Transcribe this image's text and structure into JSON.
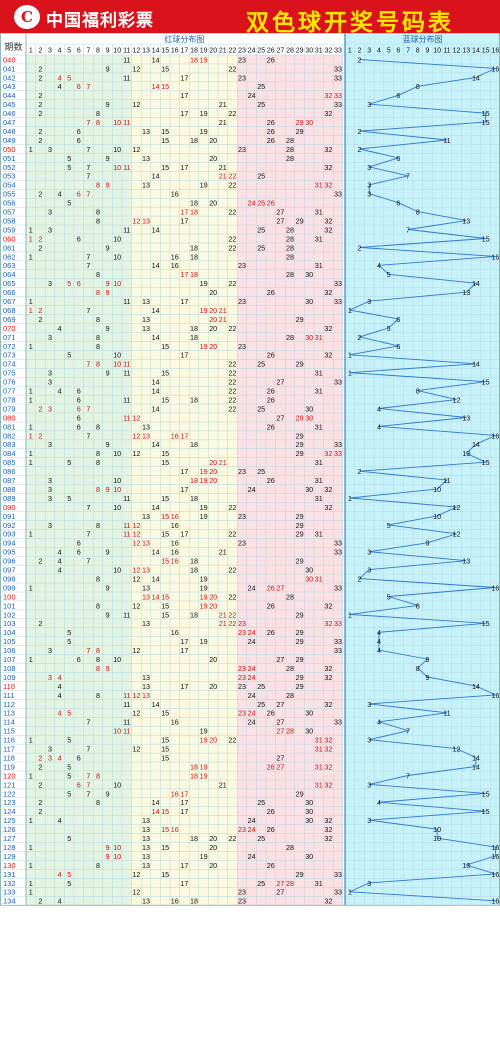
{
  "header": {
    "logo_text": "中国福利彩票",
    "title": "双色球开奖号码表"
  },
  "colors": {
    "header_bg": "#d9121b",
    "title": "#ffe600",
    "zone1": "#e3f4e3",
    "zone2": "#fbfae0",
    "zone3": "#fbe0e4",
    "blue_zone": "#c8f2fa",
    "red_num": "#d01010",
    "grid": "#b3d8e0",
    "period_red": "#e01010",
    "line": "#2c78d0"
  },
  "chart_data": {
    "type": "table",
    "column_label_period": "期数",
    "red_title": "红球分布图",
    "blue_title": "蓝球分布图",
    "red_cols": [
      "1",
      "2",
      "3",
      "4",
      "5",
      "6",
      "7",
      "8",
      "9",
      "10",
      "11",
      "12",
      "13",
      "14",
      "15",
      "16",
      "17",
      "18",
      "19",
      "20",
      "21",
      "22",
      "23",
      "24",
      "25",
      "26",
      "27",
      "28",
      "29",
      "30",
      "31",
      "32",
      "33"
    ],
    "blue_cols": [
      "1",
      "2",
      "3",
      "4",
      "5",
      "6",
      "7",
      "8",
      "9",
      "10",
      "11",
      "12",
      "13",
      "14",
      "15",
      "16"
    ],
    "draws": [
      {
        "p": "040",
        "r": [
          11,
          14,
          18,
          19,
          23,
          26
        ],
        "b": 2
      },
      {
        "p": "041",
        "r": [
          2,
          9,
          12,
          15,
          22,
          33
        ],
        "b": 16
      },
      {
        "p": "042",
        "r": [
          2,
          4,
          5,
          11,
          17,
          23,
          33
        ],
        "b": 14
      },
      {
        "p": "043",
        "r": [
          4,
          6,
          7,
          14,
          15,
          25
        ],
        "b": 8
      },
      {
        "p": "044",
        "r": [
          2,
          17,
          24,
          32,
          33
        ],
        "b": 6
      },
      {
        "p": "045",
        "r": [
          2,
          9,
          12,
          21,
          25,
          33
        ],
        "b": 3
      },
      {
        "p": "046",
        "r": [
          2,
          8,
          17,
          19,
          22,
          32
        ],
        "b": 15
      },
      {
        "p": "047",
        "r": [
          7,
          8,
          10,
          11,
          21,
          26,
          29,
          30
        ],
        "b": 15
      },
      {
        "p": "048",
        "r": [
          2,
          6,
          13,
          15,
          19,
          26,
          29
        ],
        "b": 2
      },
      {
        "p": "049",
        "r": [
          2,
          6,
          15,
          18,
          20,
          26,
          28
        ],
        "b": 11
      },
      {
        "p": "050",
        "r": [
          1,
          3,
          7,
          10,
          12,
          23,
          28,
          32
        ],
        "b": 2
      },
      {
        "p": "051",
        "r": [
          5,
          9,
          13,
          20,
          28
        ],
        "b": 6
      },
      {
        "p": "052",
        "r": [
          5,
          7,
          10,
          11,
          15,
          17,
          21,
          32
        ],
        "b": 3
      },
      {
        "p": "053",
        "r": [
          7,
          14,
          21,
          22,
          25
        ],
        "b": 7
      },
      {
        "p": "054",
        "r": [
          8,
          9,
          13,
          19,
          22,
          31,
          32
        ],
        "b": 3
      },
      {
        "p": "055",
        "r": [
          2,
          4,
          6,
          7,
          16,
          33
        ],
        "b": 3
      },
      {
        "p": "056",
        "r": [
          5,
          18,
          20,
          24,
          25,
          26
        ],
        "b": 6
      },
      {
        "p": "057",
        "r": [
          3,
          8,
          17,
          18,
          22,
          27,
          31
        ],
        "b": 8
      },
      {
        "p": "058",
        "r": [
          8,
          12,
          13,
          17,
          27,
          29,
          32
        ],
        "b": 13
      },
      {
        "p": "059",
        "r": [
          1,
          3,
          11,
          14,
          25,
          28,
          32
        ],
        "b": 7
      },
      {
        "p": "060",
        "r": [
          1,
          2,
          6,
          10,
          22,
          28,
          31
        ],
        "b": 15
      },
      {
        "p": "061",
        "r": [
          2,
          9,
          18,
          22,
          25,
          28
        ],
        "b": 2
      },
      {
        "p": "062",
        "r": [
          1,
          7,
          10,
          16,
          18,
          28
        ],
        "b": 16
      },
      {
        "p": "063",
        "r": [
          7,
          14,
          16,
          23,
          31
        ],
        "b": 4
      },
      {
        "p": "064",
        "r": [
          8,
          17,
          18,
          28,
          30
        ],
        "b": 5
      },
      {
        "p": "065",
        "r": [
          3,
          5,
          6,
          9,
          10,
          19,
          22,
          33
        ],
        "b": 14
      },
      {
        "p": "066",
        "r": [
          8,
          9,
          20,
          26,
          32
        ],
        "b": 13
      },
      {
        "p": "067",
        "r": [
          1,
          11,
          13,
          17,
          23,
          30,
          33
        ],
        "b": 3
      },
      {
        "p": "068",
        "r": [
          1,
          2,
          7,
          14,
          19,
          20,
          21
        ],
        "b": 1
      },
      {
        "p": "069",
        "r": [
          2,
          8,
          13,
          20,
          21,
          29
        ],
        "b": 6
      },
      {
        "p": "070",
        "r": [
          4,
          9,
          13,
          18,
          20,
          22,
          32
        ],
        "b": 5
      },
      {
        "p": "071",
        "r": [
          3,
          8,
          14,
          18,
          28,
          30,
          31
        ],
        "b": 2
      },
      {
        "p": "072",
        "r": [
          1,
          8,
          15,
          19,
          20,
          23
        ],
        "b": 6
      },
      {
        "p": "073",
        "r": [
          5,
          10,
          17,
          26,
          32
        ],
        "b": 1
      },
      {
        "p": "074",
        "r": [
          7,
          8,
          10,
          11,
          22,
          25,
          29
        ],
        "b": 14
      },
      {
        "p": "075",
        "r": [
          3,
          9,
          11,
          15,
          22,
          31
        ],
        "b": 1
      },
      {
        "p": "076",
        "r": [
          3,
          14,
          22,
          27,
          33
        ],
        "b": 15
      },
      {
        "p": "077",
        "r": [
          1,
          4,
          6,
          14,
          22,
          26,
          31
        ],
        "b": 8
      },
      {
        "p": "078",
        "r": [
          1,
          6,
          11,
          15,
          18,
          22,
          26
        ],
        "b": 12
      },
      {
        "p": "079",
        "r": [
          2,
          3,
          6,
          7,
          14,
          22,
          25,
          30
        ],
        "b": 4
      },
      {
        "p": "080",
        "r": [
          6,
          11,
          12,
          27,
          29,
          30
        ],
        "b": 13
      },
      {
        "p": "081",
        "r": [
          1,
          6,
          8,
          13,
          26,
          31
        ],
        "b": 4
      },
      {
        "p": "082",
        "r": [
          1,
          2,
          7,
          12,
          13,
          16,
          17,
          29
        ],
        "b": 16
      },
      {
        "p": "083",
        "r": [
          3,
          9,
          14,
          18,
          29,
          33
        ],
        "b": 14
      },
      {
        "p": "084",
        "r": [
          1,
          8,
          10,
          12,
          15,
          29,
          32,
          33
        ],
        "b": 13
      },
      {
        "p": "085",
        "r": [
          1,
          5,
          8,
          15,
          20,
          21,
          31
        ],
        "b": 15
      },
      {
        "p": "086",
        "r": [
          17,
          19,
          20,
          23,
          25
        ],
        "b": 2
      },
      {
        "p": "087",
        "r": [
          3,
          10,
          18,
          19,
          20,
          26,
          31
        ],
        "b": 11
      },
      {
        "p": "088",
        "r": [
          3,
          8,
          9,
          10,
          17,
          24,
          30,
          32
        ],
        "b": 10
      },
      {
        "p": "089",
        "r": [
          3,
          5,
          11,
          15,
          18,
          31
        ],
        "b": 1
      },
      {
        "p": "090",
        "r": [
          7,
          10,
          14,
          19,
          22,
          32
        ],
        "b": 12
      },
      {
        "p": "091",
        "r": [
          13,
          15,
          16,
          19,
          23,
          29
        ],
        "b": 10
      },
      {
        "p": "092",
        "r": [
          3,
          8,
          11,
          12,
          16,
          29
        ],
        "b": 5
      },
      {
        "p": "093",
        "r": [
          1,
          7,
          11,
          12,
          15,
          17,
          22,
          29,
          31
        ],
        "b": 12
      },
      {
        "p": "094",
        "r": [
          6,
          12,
          13,
          16,
          23,
          33
        ],
        "b": 9
      },
      {
        "p": "095",
        "r": [
          4,
          6,
          9,
          14,
          16,
          21,
          33
        ],
        "b": 3
      },
      {
        "p": "096",
        "r": [
          2,
          4,
          7,
          15,
          16,
          18,
          29
        ],
        "b": 13
      },
      {
        "p": "097",
        "r": [
          4,
          10,
          12,
          13,
          18,
          22,
          30
        ],
        "b": 3
      },
      {
        "p": "098",
        "r": [
          8,
          12,
          14,
          19,
          30,
          31
        ],
        "b": 2
      },
      {
        "p": "099",
        "r": [
          1,
          9,
          13,
          19,
          24,
          26,
          27,
          33
        ],
        "b": 16
      },
      {
        "p": "100",
        "r": [
          13,
          14,
          15,
          19,
          20,
          22,
          28
        ],
        "b": 5
      },
      {
        "p": "101",
        "r": [
          8,
          12,
          15,
          19,
          20,
          26,
          32
        ],
        "b": 8
      },
      {
        "p": "102",
        "r": [
          9,
          11,
          15,
          18,
          21,
          22,
          29
        ],
        "b": 1
      },
      {
        "p": "103",
        "r": [
          2,
          13,
          21,
          22,
          23,
          32,
          33
        ],
        "b": 15
      },
      {
        "p": "104",
        "r": [
          5,
          16,
          23,
          24,
          26,
          29
        ],
        "b": 4
      },
      {
        "p": "105",
        "r": [
          5,
          17,
          19,
          24,
          29,
          33
        ],
        "b": 4
      },
      {
        "p": "106",
        "r": [
          3,
          7,
          8,
          12,
          17,
          33
        ],
        "b": 4
      },
      {
        "p": "107",
        "r": [
          1,
          6,
          8,
          10,
          20,
          27,
          29
        ],
        "b": 9
      },
      {
        "p": "108",
        "r": [
          8,
          9,
          23,
          24,
          28,
          32
        ],
        "b": 8
      },
      {
        "p": "109",
        "r": [
          3,
          4,
          13,
          23,
          24,
          29,
          32
        ],
        "b": 9
      },
      {
        "p": "110",
        "r": [
          4,
          13,
          17,
          20,
          23,
          25,
          29
        ],
        "b": 14
      },
      {
        "p": "111",
        "r": [
          4,
          8,
          11,
          12,
          13,
          24,
          28
        ],
        "b": 16
      },
      {
        "p": "112",
        "r": [
          11,
          14,
          25,
          27,
          32
        ],
        "b": 3
      },
      {
        "p": "113",
        "r": [
          4,
          5,
          12,
          15,
          23,
          24,
          26,
          30
        ],
        "b": 11
      },
      {
        "p": "114",
        "r": [
          7,
          11,
          16,
          24,
          27,
          33
        ],
        "b": 4
      },
      {
        "p": "115",
        "r": [
          10,
          11,
          19,
          27,
          28,
          30
        ],
        "b": 7
      },
      {
        "p": "116",
        "r": [
          1,
          5,
          15,
          19,
          20,
          22,
          31,
          32
        ],
        "b": 3
      },
      {
        "p": "117",
        "r": [
          3,
          7,
          12,
          15,
          31,
          32
        ],
        "b": 12
      },
      {
        "p": "118",
        "r": [
          2,
          3,
          4,
          6,
          15,
          27
        ],
        "b": 14
      },
      {
        "p": "119",
        "r": [
          2,
          5,
          18,
          19,
          26,
          27,
          31,
          32
        ],
        "b": 14
      },
      {
        "p": "120",
        "r": [
          1,
          5,
          7,
          8,
          18,
          19
        ],
        "b": 7
      },
      {
        "p": "121",
        "r": [
          2,
          6,
          7,
          10,
          21,
          31,
          32
        ],
        "b": 3
      },
      {
        "p": "122",
        "r": [
          5,
          7,
          9,
          16,
          17,
          29
        ],
        "b": 15
      },
      {
        "p": "123",
        "r": [
          2,
          8,
          14,
          17,
          25,
          30
        ],
        "b": 4
      },
      {
        "p": "124",
        "r": [
          2,
          14,
          15,
          17,
          26,
          30
        ],
        "b": 15
      },
      {
        "p": "125",
        "r": [
          1,
          4,
          13,
          24,
          30,
          32
        ],
        "b": 3
      },
      {
        "p": "126",
        "r": [
          13,
          15,
          16,
          23,
          24,
          26,
          32
        ],
        "b": 10
      },
      {
        "p": "127",
        "r": [
          5,
          13,
          18,
          20,
          22,
          25,
          32
        ],
        "b": 10
      },
      {
        "p": "128",
        "r": [
          1,
          9,
          10,
          13,
          15,
          20,
          28
        ],
        "b": 16
      },
      {
        "p": "129",
        "r": [
          9,
          10,
          13,
          19,
          24,
          30
        ],
        "b": 16
      },
      {
        "p": "130",
        "r": [
          1,
          8,
          13,
          17,
          20,
          26
        ],
        "b": 13
      },
      {
        "p": "131",
        "r": [
          4,
          5,
          12,
          15,
          29,
          33
        ],
        "b": 16
      },
      {
        "p": "132",
        "r": [
          1,
          5,
          17,
          25,
          27,
          28,
          31
        ],
        "b": 3
      },
      {
        "p": "133",
        "r": [
          1,
          12,
          23,
          27,
          33
        ],
        "b": 1
      },
      {
        "p": "134",
        "r": [
          2,
          4,
          13,
          16,
          18,
          23,
          32
        ],
        "b": 16
      }
    ]
  }
}
